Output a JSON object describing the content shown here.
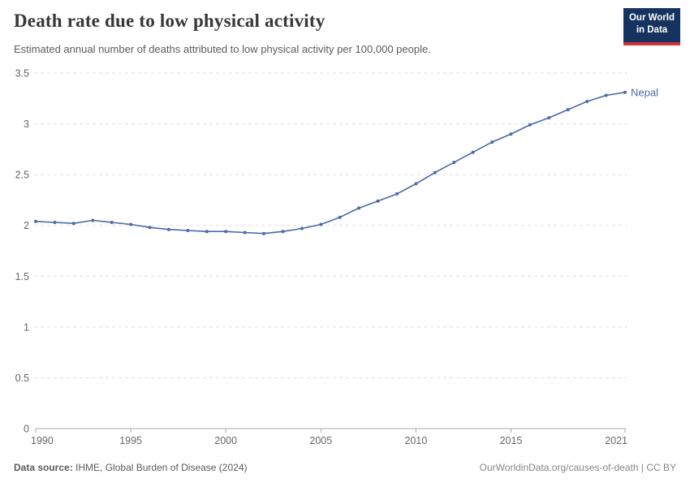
{
  "header": {
    "title": "Death rate due to low physical activity",
    "subtitle": "Estimated annual number of deaths attributed to low physical activity per 100,000 people.",
    "logo": {
      "line1": "Our World",
      "line2": "in Data",
      "bg_color": "#163360",
      "bar_color": "#d13239"
    }
  },
  "chart_data": {
    "type": "line",
    "title": "Death rate due to low physical activity",
    "xlabel": "",
    "ylabel": "",
    "x": [
      1990,
      1991,
      1992,
      1993,
      1994,
      1995,
      1996,
      1997,
      1998,
      1999,
      2000,
      2001,
      2002,
      2003,
      2004,
      2005,
      2006,
      2007,
      2008,
      2009,
      2010,
      2011,
      2012,
      2013,
      2014,
      2015,
      2016,
      2017,
      2018,
      2019,
      2020,
      2021
    ],
    "series": [
      {
        "name": "Nepal",
        "color": "#4a69a5",
        "values": [
          2.04,
          2.03,
          2.02,
          2.05,
          2.03,
          2.01,
          1.98,
          1.96,
          1.95,
          1.94,
          1.94,
          1.93,
          1.92,
          1.94,
          1.97,
          2.01,
          2.08,
          2.17,
          2.24,
          2.31,
          2.41,
          2.52,
          2.62,
          2.72,
          2.82,
          2.9,
          2.99,
          3.06,
          3.14,
          3.22,
          3.28,
          3.31
        ]
      }
    ],
    "x_ticks": [
      1990,
      1995,
      2000,
      2005,
      2010,
      2015,
      2021
    ],
    "y_ticks": [
      0,
      0.5,
      1,
      1.5,
      2,
      2.5,
      3,
      3.5
    ],
    "xlim": [
      1990,
      2021
    ],
    "ylim": [
      0,
      3.5
    ],
    "legend_position": "end-of-line-label",
    "grid": "horizontal-dashed",
    "grid_color": "#dddddd",
    "axis_color": "#a8a8a8",
    "tick_label_color": "#666666"
  },
  "footer": {
    "datasource_label": "Data source:",
    "datasource_value": "IHME, Global Burden of Disease (2024)",
    "attribution": "OurWorldinData.org/causes-of-death | CC BY"
  }
}
